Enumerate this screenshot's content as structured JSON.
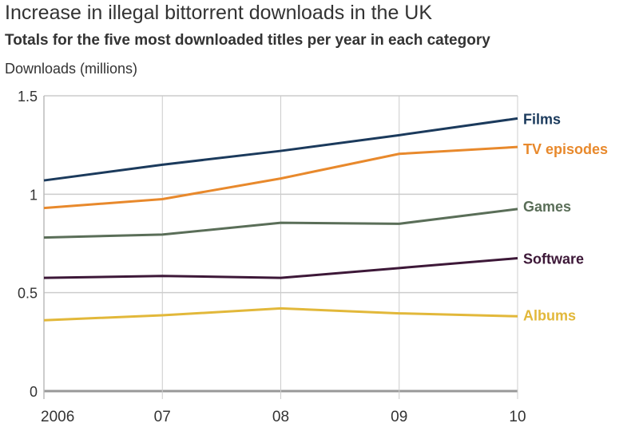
{
  "chart_data": {
    "type": "line",
    "title": "Increase in illegal bittorrent downloads in the UK",
    "subtitle": "Totals for the five most downloaded titles per year in each category",
    "xlabel": "",
    "ylabel": "Downloads (millions)",
    "categories": [
      "2006",
      "07",
      "08",
      "09",
      "10"
    ],
    "ylim": [
      0,
      1.5
    ],
    "yticks": [
      0,
      0.5,
      1,
      1.5
    ],
    "ytick_labels": [
      "0",
      "0.5",
      "1",
      "1.5"
    ],
    "grid": true,
    "legend": "right, labels at line ends",
    "series": [
      {
        "name": "Films",
        "color": "#1b3a5c",
        "values": [
          1.07,
          1.15,
          1.22,
          1.3,
          1.385
        ]
      },
      {
        "name": "TV episodes",
        "color": "#e8892c",
        "values": [
          0.93,
          0.975,
          1.08,
          1.205,
          1.24
        ]
      },
      {
        "name": "Games",
        "color": "#5a6e58",
        "values": [
          0.78,
          0.795,
          0.855,
          0.85,
          0.925
        ]
      },
      {
        "name": "Software",
        "color": "#3d1838",
        "values": [
          0.575,
          0.585,
          0.575,
          0.625,
          0.675
        ]
      },
      {
        "name": "Albums",
        "color": "#e2b83a",
        "values": [
          0.36,
          0.385,
          0.42,
          0.395,
          0.38
        ]
      }
    ]
  }
}
